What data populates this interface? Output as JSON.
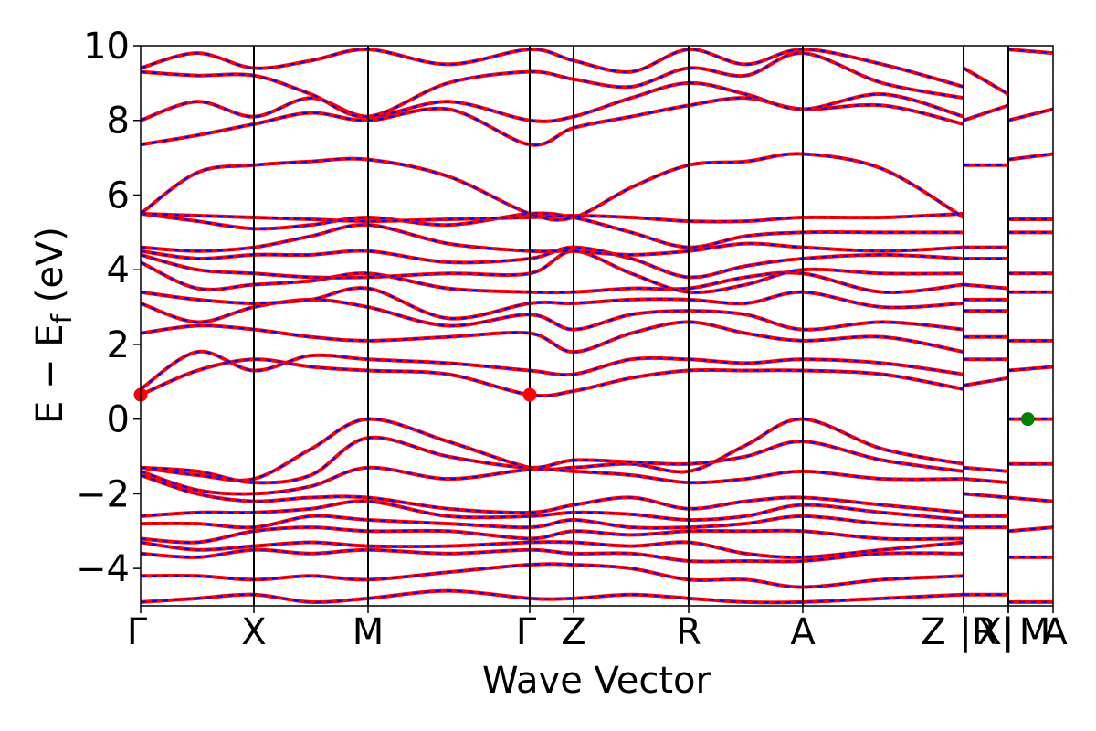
{
  "chart_data": {
    "type": "line",
    "xlabel": "Wave Vector",
    "ylabel": "E − E",
    "ylabel_sub": "f",
    "ylabel_unit": "(eV)",
    "ylim": [
      -5,
      10
    ],
    "yticks": [
      -4,
      -2,
      0,
      2,
      4,
      6,
      8,
      10
    ],
    "ytick_labels": [
      "−4",
      "−2",
      "0",
      "2",
      "4",
      "6",
      "8",
      "10"
    ],
    "xlim": [
      0,
      4.4
    ],
    "kpoints": [
      {
        "label": "Γ",
        "x": 0.0
      },
      {
        "label": "X",
        "x": 0.5
      },
      {
        "label": "M",
        "x": 1.0
      },
      {
        "label": "Γ",
        "x": 1.707
      },
      {
        "label": "Z",
        "x": 1.9
      },
      {
        "label": "R",
        "x": 2.4
      },
      {
        "label": "A",
        "x": 2.9
      },
      {
        "label": "Z",
        "x": 3.607
      },
      {
        "label": "|R",
        "x": 3.607
      },
      {
        "label": "X|",
        "x": 3.8
      },
      {
        "label": "M",
        "x": 3.8
      },
      {
        "label": "A",
        "x": 4.0
      }
    ],
    "line_colors": {
      "primary": "#ff0000",
      "overlay": "#0000ff"
    },
    "markers": [
      {
        "name": "CBM",
        "color": "#ff0000",
        "points": [
          [
            0.0,
            0.65
          ],
          [
            1.707,
            0.65
          ]
        ]
      },
      {
        "name": "VBM",
        "color": "#008000",
        "points": [
          [
            3.887,
            0.0
          ]
        ]
      }
    ],
    "bands": [
      {
        "x": [
          0,
          0.25,
          0.5,
          0.75,
          1.0,
          1.35,
          1.707,
          1.9,
          2.15,
          2.4,
          2.65,
          2.9,
          3.25,
          3.607
        ],
        "y": [
          -1.3,
          -1.5,
          -1.6,
          -0.8,
          0.0,
          -0.6,
          -1.3,
          -1.3,
          -1.2,
          -1.4,
          -0.7,
          0.0,
          -0.8,
          -1.2
        ]
      },
      {
        "x": [
          0,
          0.25,
          0.5,
          0.75,
          1.0,
          1.35,
          1.707,
          1.9,
          2.15,
          2.4,
          2.65,
          2.9,
          3.25,
          3.607
        ],
        "y": [
          -1.3,
          -1.4,
          -1.7,
          -1.5,
          -0.5,
          -1.0,
          -1.3,
          -1.1,
          -1.15,
          -1.2,
          -1.0,
          -0.6,
          -1.1,
          -1.4
        ]
      },
      {
        "x": [
          0,
          0.25,
          0.5,
          0.75,
          1.0,
          1.35,
          1.707,
          1.9,
          2.15,
          2.4,
          2.65,
          2.9,
          3.25,
          3.607
        ],
        "y": [
          -1.4,
          -1.9,
          -2.0,
          -1.8,
          -1.3,
          -1.6,
          -1.35,
          -1.4,
          -1.5,
          -1.7,
          -1.6,
          -1.4,
          -1.6,
          -1.6
        ]
      },
      {
        "x": [
          0,
          0.25,
          0.5,
          0.75,
          1.0,
          1.35,
          1.707,
          1.9,
          2.15,
          2.4,
          2.65,
          2.9,
          3.25,
          3.607
        ],
        "y": [
          -1.5,
          -2.0,
          -2.2,
          -2.1,
          -2.1,
          -2.4,
          -2.5,
          -2.3,
          -2.1,
          -2.4,
          -2.2,
          -2.1,
          -2.3,
          -2.5
        ]
      },
      {
        "x": [
          0,
          0.25,
          0.5,
          0.75,
          1.0,
          1.35,
          1.707,
          1.9,
          2.15,
          2.4,
          2.65,
          2.9,
          3.25,
          3.607
        ],
        "y": [
          -2.6,
          -2.5,
          -2.5,
          -2.4,
          -2.2,
          -2.6,
          -2.6,
          -2.5,
          -2.55,
          -2.7,
          -2.6,
          -2.3,
          -2.5,
          -2.7
        ]
      },
      {
        "x": [
          0,
          0.25,
          0.5,
          0.75,
          1.0,
          1.35,
          1.707,
          1.9,
          2.15,
          2.4,
          2.65,
          2.9,
          3.25,
          3.607
        ],
        "y": [
          -2.8,
          -2.8,
          -2.9,
          -2.6,
          -2.7,
          -2.8,
          -2.9,
          -2.7,
          -2.9,
          -2.9,
          -2.8,
          -2.6,
          -2.8,
          -2.9
        ]
      },
      {
        "x": [
          0,
          0.25,
          0.5,
          0.75,
          1.0,
          1.35,
          1.707,
          1.9,
          2.15,
          2.4,
          2.65,
          2.9,
          3.25,
          3.607
        ],
        "y": [
          -3.2,
          -3.3,
          -3.0,
          -2.9,
          -3.0,
          -3.0,
          -3.2,
          -3.0,
          -3.1,
          -3.0,
          -3.0,
          -3.0,
          -3.2,
          -3.2
        ]
      },
      {
        "x": [
          0,
          0.25,
          0.5,
          0.75,
          1.0,
          1.35,
          1.707,
          1.9,
          2.15,
          2.4,
          2.65,
          2.9,
          3.25,
          3.607
        ],
        "y": [
          -3.3,
          -3.5,
          -3.4,
          -3.3,
          -3.4,
          -3.4,
          -3.3,
          -3.3,
          -3.4,
          -3.3,
          -3.6,
          -3.7,
          -3.5,
          -3.3
        ]
      },
      {
        "x": [
          0,
          0.25,
          0.5,
          0.75,
          1.0,
          1.35,
          1.707,
          1.9,
          2.15,
          2.4,
          2.65,
          2.9,
          3.25,
          3.607
        ],
        "y": [
          -3.6,
          -3.7,
          -3.5,
          -3.6,
          -3.5,
          -3.6,
          -3.5,
          -3.6,
          -3.6,
          -3.8,
          -3.8,
          -3.8,
          -3.6,
          -3.6
        ]
      },
      {
        "x": [
          0,
          0.25,
          0.5,
          0.75,
          1.0,
          1.35,
          1.707,
          1.9,
          2.15,
          2.4,
          2.65,
          2.9,
          3.25,
          3.607
        ],
        "y": [
          -4.2,
          -4.2,
          -4.3,
          -4.2,
          -4.3,
          -4.1,
          -3.9,
          -3.9,
          -4.0,
          -4.3,
          -4.3,
          -4.5,
          -4.3,
          -4.2
        ]
      },
      {
        "x": [
          0,
          0.25,
          0.5,
          0.75,
          1.0,
          1.35,
          1.707,
          1.9,
          2.15,
          2.4,
          2.65,
          2.9,
          3.25,
          3.607
        ],
        "y": [
          -4.9,
          -4.8,
          -4.7,
          -4.9,
          -4.8,
          -4.6,
          -4.8,
          -4.8,
          -4.7,
          -4.8,
          -4.9,
          -4.9,
          -4.8,
          -4.7
        ]
      },
      {
        "x": [
          0,
          0.25,
          0.5,
          0.75,
          1.0,
          1.35,
          1.707,
          1.9,
          2.15,
          2.4,
          2.65,
          2.9,
          3.25,
          3.607
        ],
        "y": [
          0.65,
          1.3,
          1.6,
          1.4,
          1.3,
          1.2,
          0.65,
          0.75,
          1.1,
          1.3,
          1.3,
          1.3,
          1.2,
          0.8
        ]
      },
      {
        "x": [
          0,
          0.25,
          0.5,
          0.75,
          1.0,
          1.35,
          1.707,
          1.9,
          2.15,
          2.4,
          2.65,
          2.9,
          3.25,
          3.607
        ],
        "y": [
          0.8,
          1.8,
          1.3,
          1.7,
          1.6,
          1.5,
          1.3,
          1.2,
          1.6,
          1.6,
          1.5,
          1.6,
          1.5,
          1.2
        ]
      },
      {
        "x": [
          0,
          0.25,
          0.5,
          0.75,
          1.0,
          1.35,
          1.707,
          1.9,
          2.15,
          2.4,
          2.65,
          2.9,
          3.25,
          3.607
        ],
        "y": [
          2.3,
          2.5,
          2.4,
          2.2,
          2.1,
          2.2,
          2.3,
          1.8,
          2.3,
          2.6,
          2.3,
          2.1,
          2.2,
          1.8
        ]
      },
      {
        "x": [
          0,
          0.25,
          0.5,
          0.75,
          1.0,
          1.35,
          1.707,
          1.9,
          2.15,
          2.4,
          2.65,
          2.9,
          3.25,
          3.607
        ],
        "y": [
          3.1,
          2.6,
          3.0,
          3.2,
          3.0,
          2.5,
          2.8,
          2.4,
          2.8,
          2.9,
          2.8,
          2.4,
          2.6,
          2.4
        ]
      },
      {
        "x": [
          0,
          0.25,
          0.5,
          0.75,
          1.0,
          1.35,
          1.707,
          1.9,
          2.15,
          2.4,
          2.65,
          2.9,
          3.25,
          3.607
        ],
        "y": [
          3.4,
          3.2,
          3.1,
          3.2,
          3.5,
          2.7,
          3.1,
          3.1,
          3.2,
          3.2,
          3.1,
          3.4,
          3.0,
          3.1
        ]
      },
      {
        "x": [
          0,
          0.25,
          0.5,
          0.75,
          1.0,
          1.35,
          1.707,
          1.9,
          2.15,
          2.4,
          2.65,
          2.9,
          3.25,
          3.607
        ],
        "y": [
          4.2,
          3.5,
          3.6,
          3.7,
          3.9,
          3.5,
          3.4,
          3.4,
          3.5,
          3.5,
          3.8,
          3.9,
          3.4,
          3.6
        ]
      },
      {
        "x": [
          0,
          0.25,
          0.5,
          0.75,
          1.0,
          1.35,
          1.707,
          1.9,
          2.15,
          2.4,
          2.65,
          2.9,
          3.25,
          3.607
        ],
        "y": [
          4.4,
          4.0,
          3.9,
          3.8,
          3.8,
          3.9,
          3.9,
          4.5,
          3.9,
          3.4,
          3.6,
          4.0,
          3.9,
          3.9
        ]
      },
      {
        "x": [
          0,
          0.25,
          0.5,
          0.75,
          1.0,
          1.35,
          1.707,
          1.9,
          2.15,
          2.4,
          2.65,
          2.9,
          3.25,
          3.607
        ],
        "y": [
          4.5,
          4.3,
          4.4,
          4.4,
          4.5,
          4.2,
          4.3,
          4.6,
          4.3,
          3.8,
          4.1,
          4.3,
          4.4,
          4.3
        ]
      },
      {
        "x": [
          0,
          0.25,
          0.5,
          0.75,
          1.0,
          1.35,
          1.707,
          1.9,
          2.15,
          2.4,
          2.65,
          2.9,
          3.25,
          3.607
        ],
        "y": [
          4.6,
          4.5,
          4.6,
          4.9,
          5.2,
          4.7,
          4.5,
          4.5,
          4.4,
          4.5,
          4.7,
          4.6,
          4.5,
          4.6
        ]
      },
      {
        "x": [
          0,
          0.25,
          0.5,
          0.75,
          1.0,
          1.35,
          1.707,
          1.9,
          2.15,
          2.4,
          2.65,
          2.9,
          3.25,
          3.607
        ],
        "y": [
          5.5,
          5.3,
          5.1,
          5.2,
          5.4,
          5.2,
          5.5,
          5.4,
          5.0,
          4.6,
          4.9,
          5.0,
          5.0,
          5.0
        ]
      },
      {
        "x": [
          0,
          0.25,
          0.5,
          0.75,
          1.0,
          1.35,
          1.707,
          1.9,
          2.15,
          2.4,
          2.65,
          2.9,
          3.25,
          3.607
        ],
        "y": [
          5.5,
          5.45,
          5.4,
          5.35,
          5.3,
          5.35,
          5.4,
          5.45,
          5.4,
          5.3,
          5.3,
          5.4,
          5.4,
          5.5
        ]
      },
      {
        "x": [
          0,
          0.25,
          0.5,
          0.75,
          1.0,
          1.35,
          1.707,
          1.9,
          2.15,
          2.4,
          2.65,
          2.9,
          3.25,
          3.607
        ],
        "y": [
          5.5,
          6.6,
          6.8,
          6.9,
          6.95,
          6.5,
          5.5,
          5.4,
          6.2,
          6.8,
          6.9,
          7.1,
          6.7,
          5.4
        ]
      },
      {
        "x": [
          0,
          0.25,
          0.5,
          0.75,
          1.0,
          1.35,
          1.707,
          1.9,
          2.15,
          2.4,
          2.65,
          2.9,
          3.25,
          3.607
        ],
        "y": [
          7.35,
          7.6,
          7.9,
          8.2,
          8.0,
          8.3,
          7.35,
          7.8,
          8.1,
          8.4,
          8.6,
          8.3,
          8.4,
          7.9
        ]
      },
      {
        "x": [
          0,
          0.25,
          0.5,
          0.75,
          1.0,
          1.35,
          1.707,
          1.9,
          2.15,
          2.4,
          2.65,
          2.9,
          3.25,
          3.607
        ],
        "y": [
          8.0,
          8.5,
          8.1,
          8.6,
          8.1,
          8.5,
          8.0,
          8.1,
          8.6,
          9.0,
          8.7,
          8.3,
          8.7,
          8.1
        ]
      },
      {
        "x": [
          0,
          0.25,
          0.5,
          0.75,
          1.0,
          1.35,
          1.707,
          1.9,
          2.15,
          2.4,
          2.65,
          2.9,
          3.25,
          3.607
        ],
        "y": [
          9.3,
          9.2,
          9.2,
          8.7,
          8.1,
          9.0,
          9.3,
          9.1,
          8.9,
          9.4,
          9.2,
          9.8,
          9.0,
          8.6
        ]
      },
      {
        "x": [
          0,
          0.25,
          0.5,
          0.75,
          1.0,
          1.35,
          1.707,
          1.9,
          2.15,
          2.4,
          2.65,
          2.9,
          3.25,
          3.607
        ],
        "y": [
          9.4,
          9.8,
          9.4,
          9.6,
          9.9,
          9.5,
          9.9,
          9.6,
          9.3,
          9.9,
          9.5,
          9.9,
          9.5,
          8.9
        ]
      },
      {
        "x": [
          3.607,
          3.8
        ],
        "y": [
          -1.3,
          -1.4
        ]
      },
      {
        "x": [
          3.607,
          3.8
        ],
        "y": [
          -1.6,
          -1.7
        ]
      },
      {
        "x": [
          3.607,
          3.8
        ],
        "y": [
          -2.0,
          -2.1
        ]
      },
      {
        "x": [
          3.607,
          3.8
        ],
        "y": [
          -2.6,
          -2.6
        ]
      },
      {
        "x": [
          3.607,
          3.8
        ],
        "y": [
          -2.9,
          -2.9
        ]
      },
      {
        "x": [
          3.607,
          3.8
        ],
        "y": [
          -4.7,
          -4.7
        ]
      },
      {
        "x": [
          3.607,
          3.8
        ],
        "y": [
          0.9,
          1.1
        ]
      },
      {
        "x": [
          3.607,
          3.8
        ],
        "y": [
          1.6,
          1.6
        ]
      },
      {
        "x": [
          3.607,
          3.8
        ],
        "y": [
          2.2,
          2.2
        ]
      },
      {
        "x": [
          3.607,
          3.8
        ],
        "y": [
          2.9,
          2.9
        ]
      },
      {
        "x": [
          3.607,
          3.8
        ],
        "y": [
          3.2,
          3.2
        ]
      },
      {
        "x": [
          3.607,
          3.8
        ],
        "y": [
          3.6,
          3.5
        ]
      },
      {
        "x": [
          3.607,
          3.8
        ],
        "y": [
          4.3,
          4.3
        ]
      },
      {
        "x": [
          3.607,
          3.8
        ],
        "y": [
          4.6,
          4.6
        ]
      },
      {
        "x": [
          3.607,
          3.8
        ],
        "y": [
          6.8,
          6.8
        ]
      },
      {
        "x": [
          3.607,
          3.8
        ],
        "y": [
          8.0,
          8.4
        ]
      },
      {
        "x": [
          3.607,
          3.8
        ],
        "y": [
          9.4,
          8.7
        ]
      },
      {
        "x": [
          3.8,
          4.0
        ],
        "y": [
          -1.2,
          -1.2
        ]
      },
      {
        "x": [
          3.8,
          4.0
        ],
        "y": [
          -2.1,
          -2.2
        ]
      },
      {
        "x": [
          3.8,
          4.0
        ],
        "y": [
          -3.0,
          -2.9
        ]
      },
      {
        "x": [
          3.8,
          4.0
        ],
        "y": [
          -3.7,
          -3.7
        ]
      },
      {
        "x": [
          3.8,
          4.0
        ],
        "y": [
          -4.9,
          -4.9
        ]
      },
      {
        "x": [
          3.8,
          4.0
        ],
        "y": [
          0.0,
          0.0
        ]
      },
      {
        "x": [
          3.8,
          4.0
        ],
        "y": [
          1.3,
          1.4
        ]
      },
      {
        "x": [
          3.8,
          4.0
        ],
        "y": [
          2.1,
          2.1
        ]
      },
      {
        "x": [
          3.8,
          4.0
        ],
        "y": [
          3.4,
          3.4
        ]
      },
      {
        "x": [
          3.8,
          4.0
        ],
        "y": [
          3.9,
          3.9
        ]
      },
      {
        "x": [
          3.8,
          4.0
        ],
        "y": [
          5.0,
          5.0
        ]
      },
      {
        "x": [
          3.8,
          4.0
        ],
        "y": [
          5.35,
          5.35
        ]
      },
      {
        "x": [
          3.8,
          4.0
        ],
        "y": [
          6.95,
          7.1
        ]
      },
      {
        "x": [
          3.8,
          4.0
        ],
        "y": [
          8.0,
          8.3
        ]
      },
      {
        "x": [
          3.8,
          4.0
        ],
        "y": [
          9.9,
          9.8
        ]
      }
    ]
  }
}
